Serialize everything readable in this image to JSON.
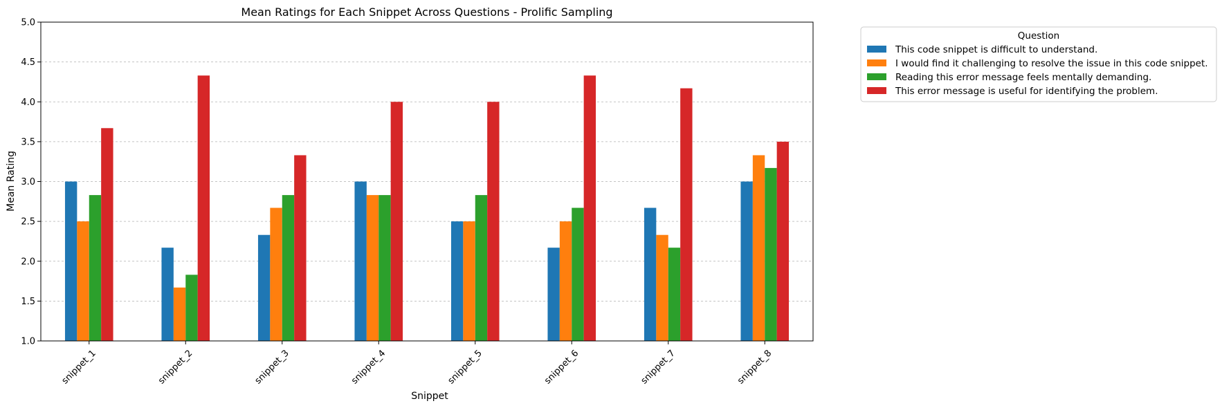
{
  "chart_data": {
    "type": "bar",
    "title": "Mean Ratings for Each Snippet Across Questions - Prolific Sampling",
    "xlabel": "Snippet",
    "ylabel": "Mean Rating",
    "ylim": [
      1.0,
      5.0
    ],
    "yticks": [
      "1.0",
      "1.5",
      "2.0",
      "2.5",
      "3.0",
      "3.5",
      "4.0",
      "4.5",
      "5.0"
    ],
    "grid": "horizontal dashed",
    "legend_title": "Question",
    "legend_position": "outside-right-top",
    "categories": [
      "snippet_1",
      "snippet_2",
      "snippet_3",
      "snippet_4",
      "snippet_5",
      "snippet_6",
      "snippet_7",
      "snippet_8"
    ],
    "series": [
      {
        "name": "This code snippet is difficult to understand.",
        "color": "#1f77b4",
        "values": [
          3.0,
          2.17,
          2.33,
          3.0,
          2.5,
          2.17,
          2.67,
          3.0
        ]
      },
      {
        "name": "I would find it challenging to resolve the issue in this code snippet.",
        "color": "#ff7f0e",
        "values": [
          2.5,
          1.67,
          2.67,
          2.83,
          2.5,
          2.5,
          2.33,
          3.33
        ]
      },
      {
        "name": "Reading this error message feels mentally demanding.",
        "color": "#2ca02c",
        "values": [
          2.83,
          1.83,
          2.83,
          2.83,
          2.83,
          2.67,
          2.17,
          3.17
        ]
      },
      {
        "name": "This error message is useful for identifying the problem.",
        "color": "#d62728",
        "values": [
          3.67,
          4.33,
          3.33,
          4.0,
          4.0,
          4.33,
          4.17,
          3.5
        ]
      }
    ]
  }
}
